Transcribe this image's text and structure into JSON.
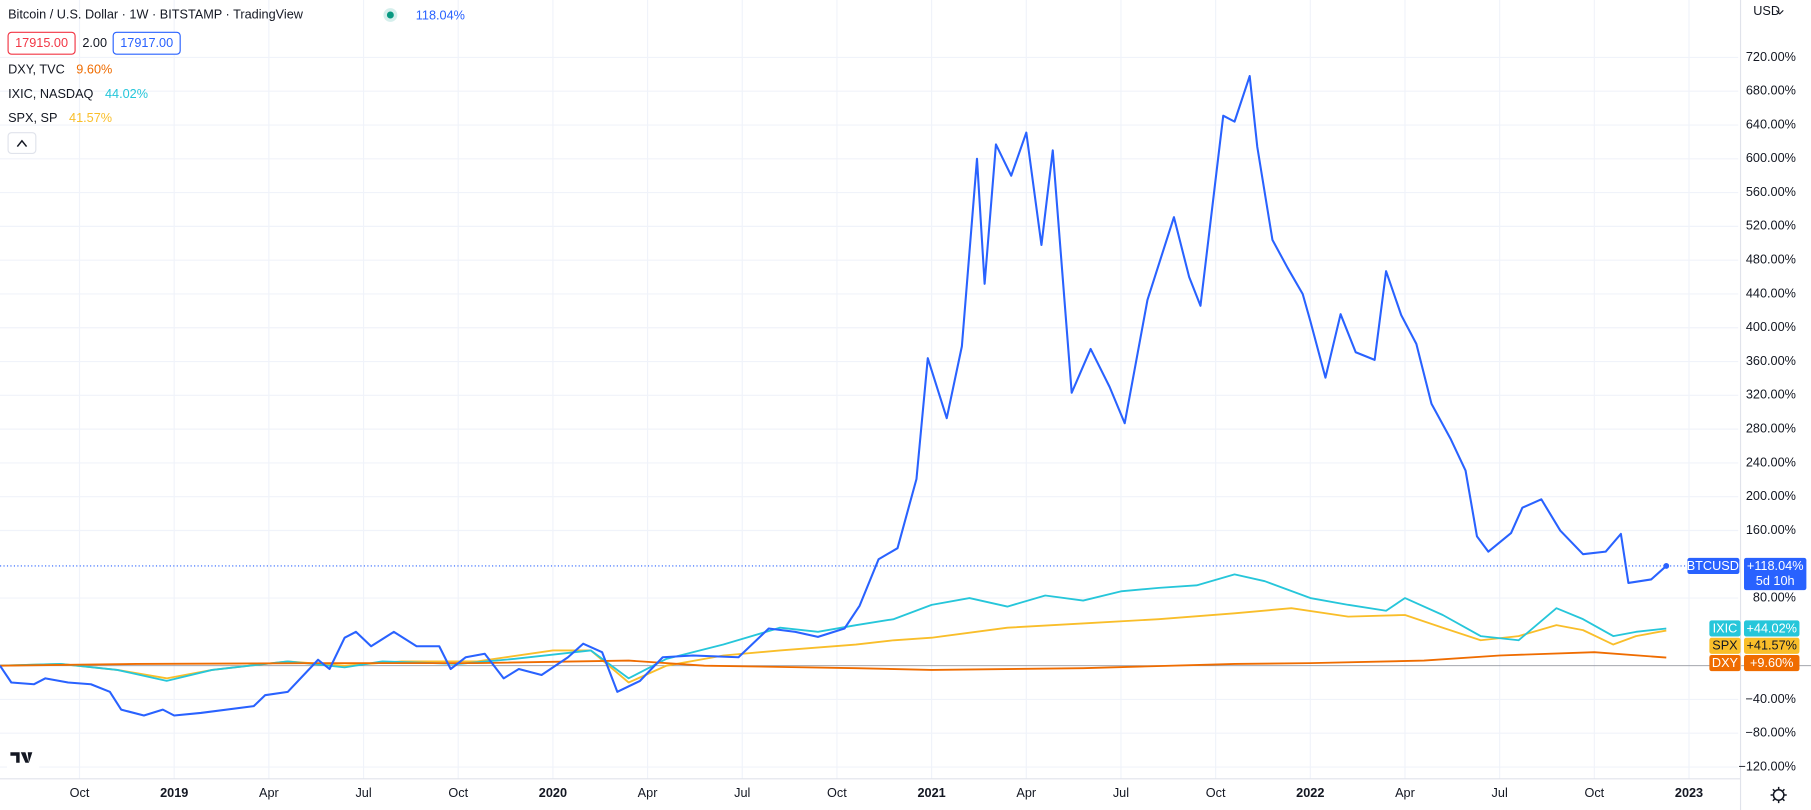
{
  "chart_data": {
    "type": "line",
    "title": "Bitcoin / U.S. Dollar · 1W · BITSTAMP · TradingView",
    "quote": {
      "bid": "17915.00",
      "spread": "2.00",
      "ask": "17917.00"
    },
    "currency": "USD",
    "countdown": "5d 10h",
    "xlim": [
      2018.54,
      2023.13
    ],
    "ylim": [
      -134,
      788
    ],
    "grid": true,
    "xticks": [
      {
        "value": 2018.75,
        "label": "Oct"
      },
      {
        "value": 2019,
        "label": "2019"
      },
      {
        "value": 2019.25,
        "label": "Apr"
      },
      {
        "value": 2019.5,
        "label": "Jul"
      },
      {
        "value": 2019.75,
        "label": "Oct"
      },
      {
        "value": 2020,
        "label": "2020"
      },
      {
        "value": 2020.25,
        "label": "Apr"
      },
      {
        "value": 2020.5,
        "label": "Jul"
      },
      {
        "value": 2020.75,
        "label": "Oct"
      },
      {
        "value": 2021,
        "label": "2021"
      },
      {
        "value": 2021.25,
        "label": "Apr"
      },
      {
        "value": 2021.5,
        "label": "Jul"
      },
      {
        "value": 2021.75,
        "label": "Oct"
      },
      {
        "value": 2022,
        "label": "2022"
      },
      {
        "value": 2022.25,
        "label": "Apr"
      },
      {
        "value": 2022.5,
        "label": "Jul"
      },
      {
        "value": 2022.75,
        "label": "Oct"
      },
      {
        "value": 2023,
        "label": "2023"
      }
    ],
    "yticks": [
      {
        "value": 720,
        "label": "720.00%"
      },
      {
        "value": 680,
        "label": "680.00%"
      },
      {
        "value": 640,
        "label": "640.00%"
      },
      {
        "value": 600,
        "label": "600.00%"
      },
      {
        "value": 560,
        "label": "560.00%"
      },
      {
        "value": 520,
        "label": "520.00%"
      },
      {
        "value": 480,
        "label": "480.00%"
      },
      {
        "value": 440,
        "label": "440.00%"
      },
      {
        "value": 400,
        "label": "400.00%"
      },
      {
        "value": 360,
        "label": "360.00%"
      },
      {
        "value": 320,
        "label": "320.00%"
      },
      {
        "value": 280,
        "label": "280.00%"
      },
      {
        "value": 240,
        "label": "240.00%"
      },
      {
        "value": 200,
        "label": "200.00%"
      },
      {
        "value": 160,
        "label": "160.00%"
      },
      {
        "value": 80,
        "label": "80.00%"
      },
      {
        "value": -40,
        "label": "−40.00%"
      },
      {
        "value": -80,
        "label": "−80.00%"
      },
      {
        "value": -120,
        "label": "−120.00%"
      }
    ],
    "series": [
      {
        "name": "BTCUSD",
        "color": "#2962ff",
        "legend_label": "118.04%",
        "tag_label": "+118.04%",
        "x": [
          2018.54,
          2018.57,
          2018.63,
          2018.66,
          2018.72,
          2018.78,
          2018.83,
          2018.86,
          2018.92,
          2018.97,
          2019.0,
          2019.07,
          2019.21,
          2019.24,
          2019.3,
          2019.38,
          2019.41,
          2019.45,
          2019.48,
          2019.52,
          2019.58,
          2019.64,
          2019.7,
          2019.73,
          2019.77,
          2019.82,
          2019.87,
          2019.91,
          2019.97,
          2020.04,
          2020.08,
          2020.13,
          2020.17,
          2020.23,
          2020.29,
          2020.37,
          2020.49,
          2020.57,
          2020.64,
          2020.7,
          2020.77,
          2020.81,
          2020.86,
          2020.91,
          2020.96,
          2020.99,
          2021.04,
          2021.08,
          2021.12,
          2021.14,
          2021.17,
          2021.21,
          2021.25,
          2021.29,
          2021.32,
          2021.37,
          2021.42,
          2021.47,
          2021.51,
          2021.57,
          2021.64,
          2021.68,
          2021.71,
          2021.77,
          2021.8,
          2021.84,
          2021.86,
          2021.9,
          2021.94,
          2021.98,
          2022.0,
          2022.04,
          2022.08,
          2022.12,
          2022.17,
          2022.2,
          2022.24,
          2022.28,
          2022.32,
          2022.37,
          2022.41,
          2022.44,
          2022.47,
          2022.53,
          2022.56,
          2022.61,
          2022.66,
          2022.72,
          2022.78,
          2022.82,
          2022.84,
          2022.9,
          2022.94
        ],
        "values": [
          0,
          -20,
          -22,
          -15,
          -20,
          -22,
          -31,
          -52,
          -59,
          -52,
          -59,
          -56,
          -48,
          -35,
          -31,
          7,
          -4,
          33,
          40,
          23,
          40,
          23,
          23,
          -4,
          10,
          14,
          -15,
          -4,
          -11,
          10,
          26,
          16,
          -31,
          -18,
          10,
          12,
          10,
          44,
          40,
          34,
          44,
          71,
          126,
          139,
          221,
          364,
          293,
          378,
          600,
          452,
          617,
          580,
          631,
          498,
          610,
          323,
          375,
          330,
          287,
          433,
          531,
          460,
          426,
          651,
          644,
          698,
          614,
          504,
          471,
          440,
          408,
          341,
          416,
          371,
          362,
          467,
          415,
          381,
          310,
          269,
          231,
          153,
          135,
          157,
          187,
          197,
          160,
          132,
          135,
          156,
          98,
          102,
          118.04
        ]
      },
      {
        "name": "DXY, TVC",
        "symbol": "DXY",
        "color": "#ef6c00",
        "legend_label": "9.60%",
        "tag_label": "+9.60%",
        "x": [
          2018.54,
          2018.9,
          2019.4,
          2019.8,
          2020.2,
          2020.4,
          2020.8,
          2021.0,
          2021.4,
          2021.8,
          2022.0,
          2022.3,
          2022.5,
          2022.75,
          2022.94
        ],
        "values": [
          0,
          2,
          3,
          3,
          6,
          0,
          -3,
          -5,
          -3,
          2,
          3,
          6,
          12,
          16,
          9.6
        ]
      },
      {
        "name": "IXIC, NASDAQ",
        "symbol": "IXIC",
        "color": "#26c6da",
        "legend_label": "44.02%",
        "tag_label": "+44.02%",
        "x": [
          2018.54,
          2018.7,
          2018.85,
          2018.98,
          2019.1,
          2019.3,
          2019.45,
          2019.55,
          2019.75,
          2019.9,
          2020.1,
          2020.2,
          2020.3,
          2020.45,
          2020.6,
          2020.7,
          2020.8,
          2020.9,
          2021.0,
          2021.1,
          2021.2,
          2021.3,
          2021.4,
          2021.5,
          2021.6,
          2021.7,
          2021.8,
          2021.88,
          2022.0,
          2022.1,
          2022.2,
          2022.25,
          2022.35,
          2022.45,
          2022.55,
          2022.65,
          2022.72,
          2022.8,
          2022.86,
          2022.94
        ],
        "values": [
          0,
          2,
          -5,
          -18,
          -5,
          5,
          -2,
          5,
          2,
          8,
          18,
          -15,
          8,
          25,
          45,
          40,
          48,
          55,
          72,
          80,
          70,
          83,
          77,
          88,
          92,
          95,
          108,
          100,
          80,
          72,
          65,
          80,
          60,
          35,
          30,
          68,
          55,
          35,
          40,
          44.02
        ]
      },
      {
        "name": "SPX, SP",
        "symbol": "SPX",
        "color": "#f9be2a",
        "legend_label": "41.57%",
        "tag_label": "+41.57%",
        "x": [
          2018.54,
          2018.7,
          2018.85,
          2018.98,
          2019.1,
          2019.3,
          2019.45,
          2019.6,
          2019.8,
          2020.0,
          2020.1,
          2020.2,
          2020.3,
          2020.45,
          2020.6,
          2020.8,
          2020.9,
          2021.0,
          2021.2,
          2021.4,
          2021.6,
          2021.8,
          2021.95,
          2022.1,
          2022.25,
          2022.35,
          2022.45,
          2022.55,
          2022.65,
          2022.72,
          2022.8,
          2022.86,
          2022.94
        ],
        "values": [
          0,
          2,
          -5,
          -15,
          -5,
          5,
          0,
          5,
          5,
          18,
          18,
          -20,
          0,
          12,
          18,
          25,
          30,
          33,
          45,
          50,
          55,
          62,
          68,
          58,
          60,
          45,
          30,
          35,
          48,
          42,
          25,
          35,
          41.57
        ]
      }
    ]
  }
}
